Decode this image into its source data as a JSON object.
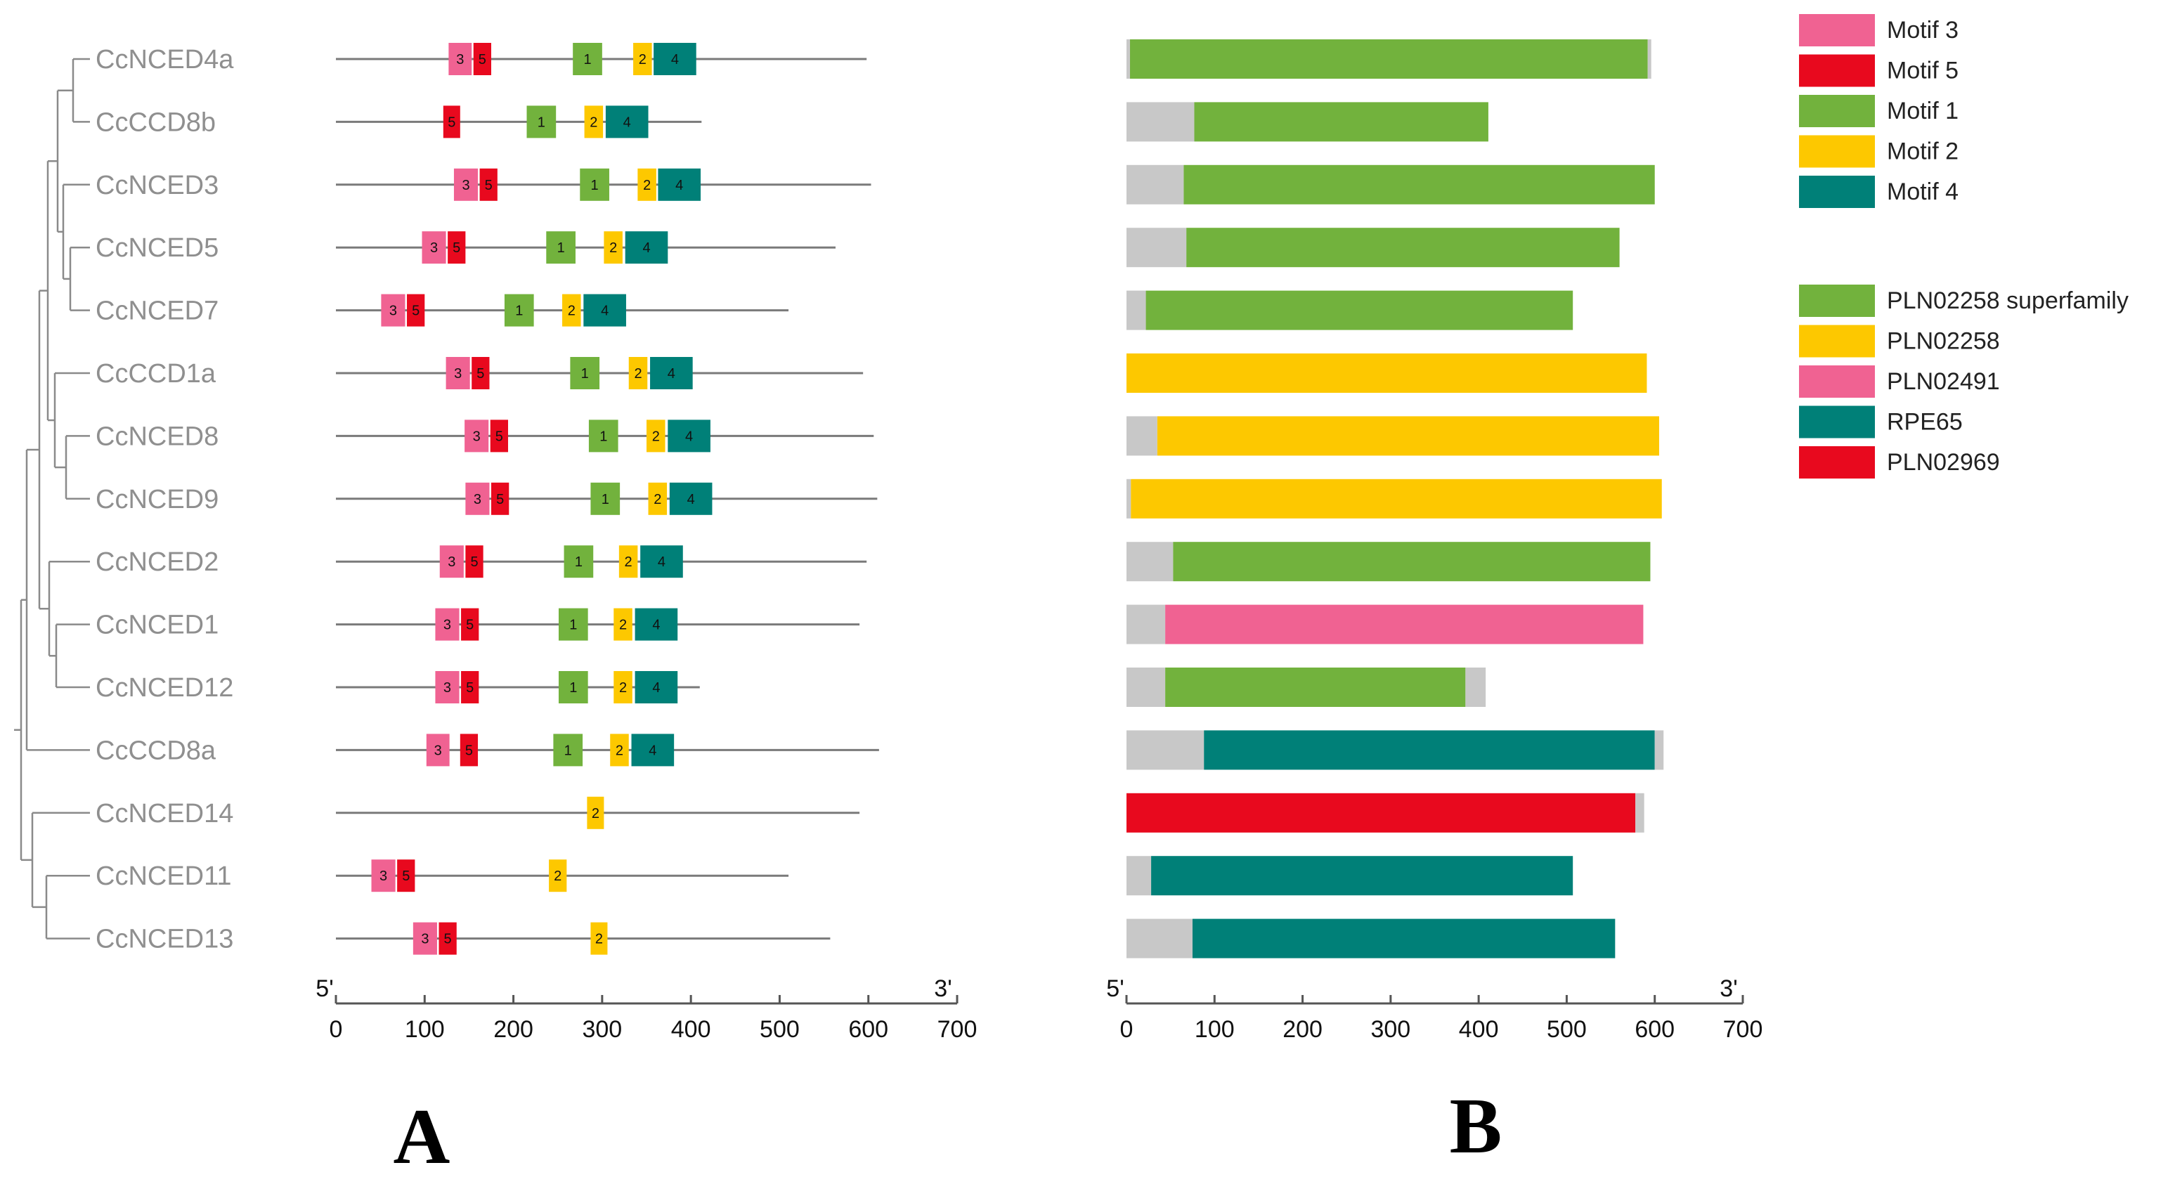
{
  "colors": {
    "motif3": "#f06292",
    "motif5": "#e8091e",
    "motif1": "#72b23d",
    "motif2": "#fdc800",
    "motif4": "#008078",
    "dom_plnsuper": "#72b23d",
    "dom_pln02258": "#fdc800",
    "dom_pln02491": "#f06292",
    "dom_rpe65": "#008078",
    "dom_pln02969": "#e8091e",
    "dom_gray": "#c8c8c8",
    "backbone": "#7a7a7a",
    "tree": "#8a8a8a",
    "axis": "#555555"
  },
  "panel_a": {
    "label": "A",
    "five_prime": "5'",
    "three_prime": "3'",
    "ticks": [
      "0",
      "100",
      "200",
      "300",
      "400",
      "500",
      "600",
      "700"
    ]
  },
  "panel_b": {
    "label": "B",
    "five_prime": "5'",
    "three_prime": "3'",
    "ticks": [
      "0",
      "100",
      "200",
      "300",
      "400",
      "500",
      "600",
      "700"
    ]
  },
  "legend_motifs": [
    {
      "label": "Motif 3",
      "color_key": "motif3"
    },
    {
      "label": "Motif 5",
      "color_key": "motif5"
    },
    {
      "label": "Motif 1",
      "color_key": "motif1"
    },
    {
      "label": "Motif 2",
      "color_key": "motif2"
    },
    {
      "label": "Motif 4",
      "color_key": "motif4"
    }
  ],
  "legend_domains": [
    {
      "label": "PLN02258 superfamily",
      "color_key": "dom_plnsuper"
    },
    {
      "label": "PLN02258",
      "color_key": "dom_pln02258"
    },
    {
      "label": "PLN02491",
      "color_key": "dom_pln02491"
    },
    {
      "label": "RPE65",
      "color_key": "dom_rpe65"
    },
    {
      "label": "PLN02969",
      "color_key": "dom_pln02969"
    }
  ],
  "chart_data": {
    "type": "gene-structure",
    "axis_range": [
      0,
      700
    ],
    "genes": [
      {
        "name": "CcNCED4a",
        "length": 598,
        "motifs": [
          {
            "id": "3",
            "start": 127,
            "end": 153
          },
          {
            "id": "5",
            "start": 155,
            "end": 175
          },
          {
            "id": "1",
            "start": 267,
            "end": 300
          },
          {
            "id": "2",
            "start": 335,
            "end": 356
          },
          {
            "id": "4",
            "start": 358,
            "end": 406
          }
        ],
        "domains": [
          {
            "type": "dom_gray",
            "start": 0,
            "end": 4
          },
          {
            "type": "dom_plnsuper",
            "start": 4,
            "end": 592
          },
          {
            "type": "dom_gray",
            "start": 592,
            "end": 596
          }
        ]
      },
      {
        "name": "CcCCD8b",
        "length": 412,
        "motifs": [
          {
            "id": "5",
            "start": 121,
            "end": 140
          },
          {
            "id": "1",
            "start": 215,
            "end": 248
          },
          {
            "id": "2",
            "start": 280,
            "end": 301
          },
          {
            "id": "4",
            "start": 304,
            "end": 352
          }
        ],
        "domains": [
          {
            "type": "dom_gray",
            "start": 0,
            "end": 77
          },
          {
            "type": "dom_plnsuper",
            "start": 77,
            "end": 411
          }
        ]
      },
      {
        "name": "CcNCED3",
        "length": 603,
        "motifs": [
          {
            "id": "3",
            "start": 133,
            "end": 160
          },
          {
            "id": "5",
            "start": 162,
            "end": 182
          },
          {
            "id": "1",
            "start": 275,
            "end": 308
          },
          {
            "id": "2",
            "start": 340,
            "end": 361
          },
          {
            "id": "4",
            "start": 363,
            "end": 411
          }
        ],
        "domains": [
          {
            "type": "dom_gray",
            "start": 0,
            "end": 65
          },
          {
            "type": "dom_plnsuper",
            "start": 65,
            "end": 600
          }
        ]
      },
      {
        "name": "CcNCED5",
        "length": 563,
        "motifs": [
          {
            "id": "3",
            "start": 97,
            "end": 124
          },
          {
            "id": "5",
            "start": 126,
            "end": 146
          },
          {
            "id": "1",
            "start": 237,
            "end": 270
          },
          {
            "id": "2",
            "start": 302,
            "end": 323
          },
          {
            "id": "4",
            "start": 326,
            "end": 374
          }
        ],
        "domains": [
          {
            "type": "dom_gray",
            "start": 0,
            "end": 68
          },
          {
            "type": "dom_plnsuper",
            "start": 68,
            "end": 560
          }
        ]
      },
      {
        "name": "CcNCED7",
        "length": 510,
        "motifs": [
          {
            "id": "3",
            "start": 51,
            "end": 78
          },
          {
            "id": "5",
            "start": 80,
            "end": 100
          },
          {
            "id": "1",
            "start": 190,
            "end": 223
          },
          {
            "id": "2",
            "start": 255,
            "end": 276
          },
          {
            "id": "4",
            "start": 279,
            "end": 327
          }
        ],
        "domains": [
          {
            "type": "dom_gray",
            "start": 0,
            "end": 22
          },
          {
            "type": "dom_plnsuper",
            "start": 22,
            "end": 507
          }
        ]
      },
      {
        "name": "CcCCD1a",
        "length": 594,
        "motifs": [
          {
            "id": "3",
            "start": 124,
            "end": 151
          },
          {
            "id": "5",
            "start": 153,
            "end": 173
          },
          {
            "id": "1",
            "start": 264,
            "end": 297
          },
          {
            "id": "2",
            "start": 330,
            "end": 351
          },
          {
            "id": "4",
            "start": 354,
            "end": 402
          }
        ],
        "domains": [
          {
            "type": "dom_pln02258",
            "start": 0,
            "end": 591
          }
        ]
      },
      {
        "name": "CcNCED8",
        "length": 606,
        "motifs": [
          {
            "id": "3",
            "start": 145,
            "end": 172
          },
          {
            "id": "5",
            "start": 174,
            "end": 194
          },
          {
            "id": "1",
            "start": 285,
            "end": 318
          },
          {
            "id": "2",
            "start": 350,
            "end": 371
          },
          {
            "id": "4",
            "start": 374,
            "end": 422
          }
        ],
        "domains": [
          {
            "type": "dom_gray",
            "start": 0,
            "end": 35
          },
          {
            "type": "dom_pln02258",
            "start": 35,
            "end": 605
          }
        ]
      },
      {
        "name": "CcNCED9",
        "length": 610,
        "motifs": [
          {
            "id": "3",
            "start": 146,
            "end": 173
          },
          {
            "id": "5",
            "start": 175,
            "end": 195
          },
          {
            "id": "1",
            "start": 287,
            "end": 320
          },
          {
            "id": "2",
            "start": 352,
            "end": 373
          },
          {
            "id": "4",
            "start": 376,
            "end": 424
          }
        ],
        "domains": [
          {
            "type": "dom_gray",
            "start": 0,
            "end": 5
          },
          {
            "type": "dom_pln02258",
            "start": 5,
            "end": 608
          }
        ]
      },
      {
        "name": "CcNCED2",
        "length": 598,
        "motifs": [
          {
            "id": "3",
            "start": 117,
            "end": 144
          },
          {
            "id": "5",
            "start": 146,
            "end": 166
          },
          {
            "id": "1",
            "start": 257,
            "end": 290
          },
          {
            "id": "2",
            "start": 319,
            "end": 340
          },
          {
            "id": "4",
            "start": 343,
            "end": 391
          }
        ],
        "domains": [
          {
            "type": "dom_gray",
            "start": 0,
            "end": 53
          },
          {
            "type": "dom_plnsuper",
            "start": 53,
            "end": 595
          }
        ]
      },
      {
        "name": "CcNCED1",
        "length": 590,
        "motifs": [
          {
            "id": "3",
            "start": 112,
            "end": 139
          },
          {
            "id": "5",
            "start": 141,
            "end": 161
          },
          {
            "id": "1",
            "start": 251,
            "end": 284
          },
          {
            "id": "2",
            "start": 313,
            "end": 334
          },
          {
            "id": "4",
            "start": 337,
            "end": 385
          }
        ],
        "domains": [
          {
            "type": "dom_gray",
            "start": 0,
            "end": 44
          },
          {
            "type": "dom_pln02491",
            "start": 44,
            "end": 587
          }
        ]
      },
      {
        "name": "CcNCED12",
        "length": 410,
        "motifs": [
          {
            "id": "3",
            "start": 112,
            "end": 139
          },
          {
            "id": "5",
            "start": 141,
            "end": 161
          },
          {
            "id": "1",
            "start": 251,
            "end": 284
          },
          {
            "id": "2",
            "start": 313,
            "end": 334
          },
          {
            "id": "4",
            "start": 337,
            "end": 385
          }
        ],
        "domains": [
          {
            "type": "dom_gray",
            "start": 0,
            "end": 44
          },
          {
            "type": "dom_plnsuper",
            "start": 44,
            "end": 385
          },
          {
            "type": "dom_gray",
            "start": 385,
            "end": 408
          }
        ]
      },
      {
        "name": "CcCCD8a",
        "length": 612,
        "motifs": [
          {
            "id": "3",
            "start": 102,
            "end": 128
          },
          {
            "id": "5",
            "start": 140,
            "end": 160
          },
          {
            "id": "1",
            "start": 245,
            "end": 278
          },
          {
            "id": "2",
            "start": 309,
            "end": 330
          },
          {
            "id": "4",
            "start": 333,
            "end": 381
          }
        ],
        "domains": [
          {
            "type": "dom_gray",
            "start": 0,
            "end": 88
          },
          {
            "type": "dom_rpe65",
            "start": 88,
            "end": 600
          },
          {
            "type": "dom_gray",
            "start": 600,
            "end": 610
          }
        ]
      },
      {
        "name": "CcNCED14",
        "length": 590,
        "motifs": [
          {
            "id": "2",
            "start": 283,
            "end": 302
          }
        ],
        "domains": [
          {
            "type": "dom_pln02969",
            "start": 0,
            "end": 578
          },
          {
            "type": "dom_gray",
            "start": 578,
            "end": 588
          }
        ]
      },
      {
        "name": "CcNCED11",
        "length": 510,
        "motifs": [
          {
            "id": "3",
            "start": 40,
            "end": 67
          },
          {
            "id": "5",
            "start": 69,
            "end": 89
          },
          {
            "id": "2",
            "start": 240,
            "end": 260
          }
        ],
        "domains": [
          {
            "type": "dom_gray",
            "start": 0,
            "end": 28
          },
          {
            "type": "dom_rpe65",
            "start": 28,
            "end": 507
          }
        ]
      },
      {
        "name": "CcNCED13",
        "length": 557,
        "motifs": [
          {
            "id": "3",
            "start": 87,
            "end": 114
          },
          {
            "id": "5",
            "start": 116,
            "end": 136
          },
          {
            "id": "2",
            "start": 287,
            "end": 306
          }
        ],
        "domains": [
          {
            "type": "dom_gray",
            "start": 0,
            "end": 75
          },
          {
            "type": "dom_rpe65",
            "start": 75,
            "end": 555
          }
        ]
      }
    ]
  }
}
